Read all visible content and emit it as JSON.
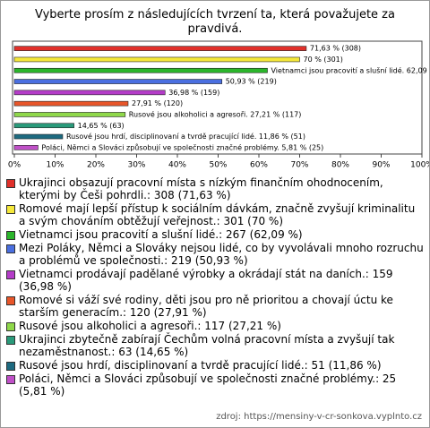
{
  "chart_data": {
    "type": "bar",
    "orientation": "horizontal",
    "title": "Vyberte prosím z následujících tvrzení ta, která považujete za pravdivá.",
    "values": [
      71.63,
      70,
      62.09,
      50.93,
      36.98,
      27.91,
      27.21,
      14.65,
      11.86,
      5.81
    ],
    "value_labels": [
      "71,63 % (308)",
      "70 % (301)",
      "Vietnamci jsou pracovití a slušní lidé. 62,09 % (267)",
      "50,93 % (219)",
      "36,98 % (159)",
      "27,91 % (120)",
      "Rusové jsou alkoholici a agresoři. 27,21 % (117)",
      "14,65 % (63)",
      "Rusové jsou hrdí, disciplinovaní a tvrdě pracující lidé. 11,86 % (51)",
      "Poláci, Němci a Slováci způsobují ve společnosti značné problémy. 5,81 % (25)"
    ],
    "colors": [
      "#e0302a",
      "#f5e83a",
      "#2bb52b",
      "#4a6fe0",
      "#b43cc8",
      "#e8562a",
      "#8fd84a",
      "#2a9a7a",
      "#1d6a80",
      "#c050c8"
    ],
    "legend": [
      "Ukrajinci obsazují pracovní místa s nízkým finančním ohodnocením, kterými by Češi pohrdli.: 308 (71,63 %)",
      "Romové mají lepší přístup k sociálním dávkám, značně zvyšují kriminalitu a svým chováním obtěžují veřejnost.: 301 (70 %)",
      "Vietnamci jsou pracovití a slušní lidé.: 267 (62,09 %)",
      "Mezi Poláky, Němci a Slováky nejsou lidé, co by vyvolávali mnoho rozruchu a problémů ve společnosti.: 219 (50,93 %)",
      "Vietnamci prodávají padělané výrobky a okrádají stát na daních.: 159 (36,98 %)",
      "Romové si váží své rodiny, děti jsou pro ně prioritou a chovají úctu ke starším generacím.: 120 (27,91 %)",
      "Rusové jsou alkoholici a agresoři.: 117 (27,21 %)",
      "Ukrajinci zbytečně zabírají Čechům volná pracovní místa a zvyšují tak nezaměstnanost.: 63 (14,65 %)",
      "Rusové jsou hrdí, disciplinovaní a tvrdě pracující lidé.: 51 (11,86 %)",
      "Poláci, Němci a Slováci způsobují ve společnosti značné problémy.: 25 (5,81 %)"
    ],
    "xlim": [
      0,
      100
    ],
    "xticks": [
      {
        "value": 0,
        "label": "0%"
      },
      {
        "value": 10,
        "label": "10%"
      },
      {
        "value": 20,
        "label": "20%"
      },
      {
        "value": 30,
        "label": "30%"
      },
      {
        "value": 40,
        "label": "40%"
      },
      {
        "value": 50,
        "label": "50%"
      },
      {
        "value": 60,
        "label": "60%"
      },
      {
        "value": 70,
        "label": "70%"
      },
      {
        "value": 80,
        "label": "80%"
      },
      {
        "value": 90,
        "label": "90%"
      },
      {
        "value": 100,
        "label": "100%"
      }
    ],
    "source": "zdroj: https://mensiny-v-cr-sonkova.vyplnto.cz"
  }
}
